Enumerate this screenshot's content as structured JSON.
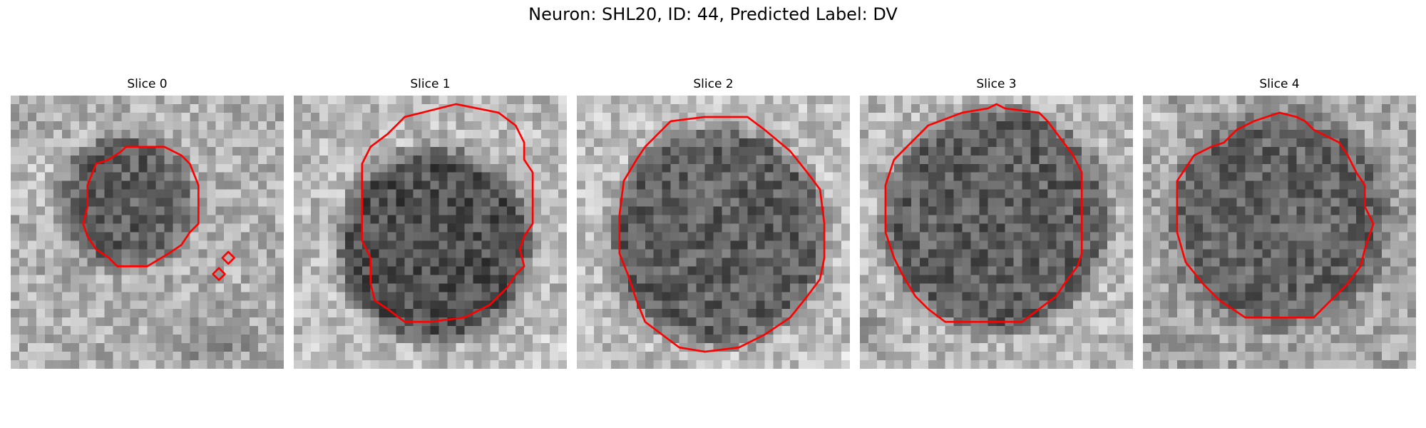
{
  "figure": {
    "title": "Neuron: SHL20, ID: 44, Predicted Label: DV"
  },
  "contour_color": "#ff0000",
  "panels": [
    {
      "title": "Slice 0"
    },
    {
      "title": "Slice 1"
    },
    {
      "title": "Slice 2"
    },
    {
      "title": "Slice 3"
    },
    {
      "title": "Slice 4"
    }
  ]
}
